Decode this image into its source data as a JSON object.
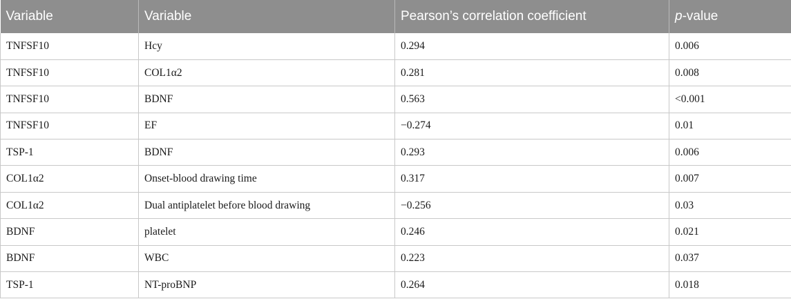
{
  "table": {
    "headers": {
      "variable_1": "Variable",
      "variable_2": "Variable",
      "pearson": "Pearson’s correlation coefficient",
      "p_italic": "p",
      "p_rest": "-value"
    },
    "rows": [
      {
        "var1": "TNFSF10",
        "var2": "Hcy",
        "r": "0.294",
        "p": "0.006"
      },
      {
        "var1": "TNFSF10",
        "var2": "COL1α2",
        "r": "0.281",
        "p": "0.008"
      },
      {
        "var1": "TNFSF10",
        "var2": "BDNF",
        "r": "0.563",
        "p": "<0.001"
      },
      {
        "var1": "TNFSF10",
        "var2": "EF",
        "r": "−0.274",
        "p": "0.01"
      },
      {
        "var1": "TSP-1",
        "var2": "BDNF",
        "r": "0.293",
        "p": "0.006"
      },
      {
        "var1": "COL1α2",
        "var2": "Onset-blood drawing time",
        "r": "0.317",
        "p": "0.007"
      },
      {
        "var1": "COL1α2",
        "var2": "Dual antiplatelet before blood drawing",
        "r": "−0.256",
        "p": "0.03"
      },
      {
        "var1": "BDNF",
        "var2": "platelet",
        "r": "0.246",
        "p": "0.021"
      },
      {
        "var1": "BDNF",
        "var2": "WBC",
        "r": "0.223",
        "p": "0.037"
      },
      {
        "var1": "TSP-1",
        "var2": "NT-proBNP",
        "r": "0.264",
        "p": "0.018"
      }
    ]
  },
  "colors": {
    "header_bg": "#8e8e8e",
    "header_text": "#ffffff",
    "grid_line": "#c8c8c8"
  }
}
